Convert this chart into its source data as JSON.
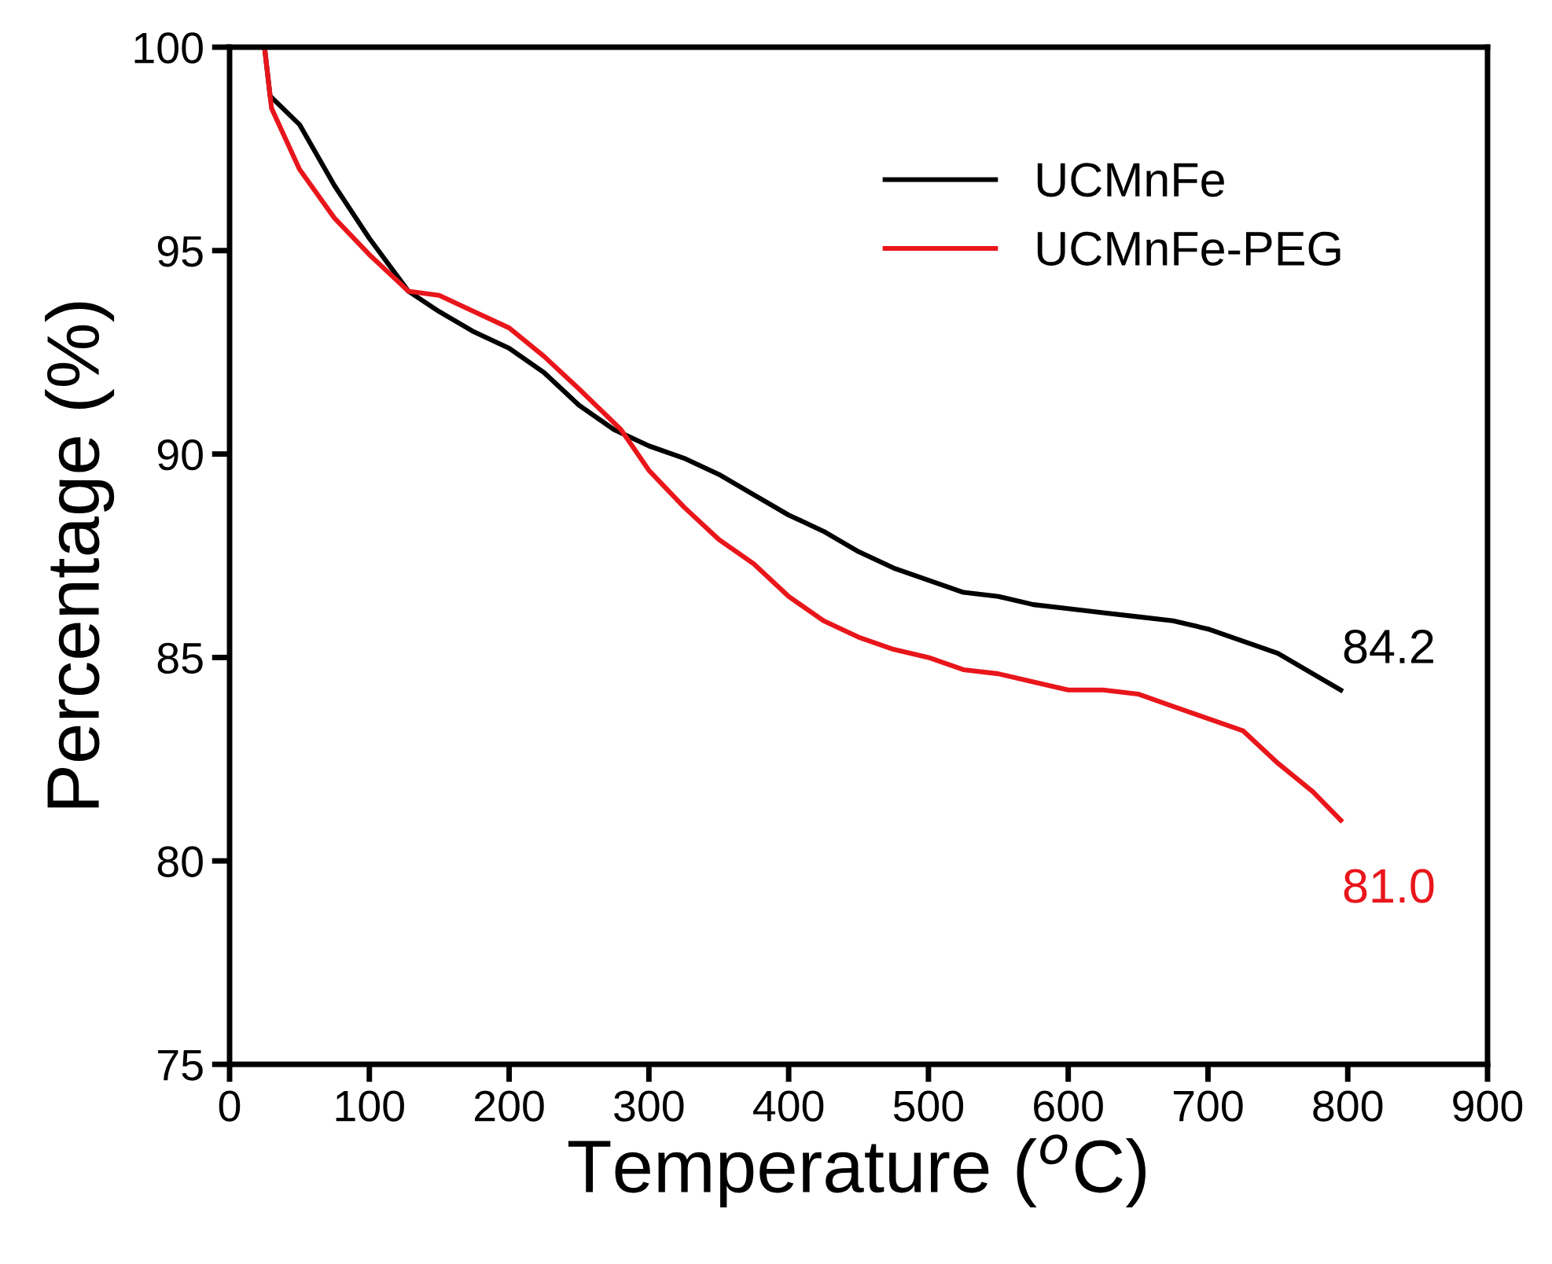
{
  "chart_data": {
    "type": "line",
    "xlabel": "Temperature ($^{o}$C)",
    "ylabel": "Percentage (%)",
    "xlim": [
      0,
      900
    ],
    "xticks": [
      0,
      100,
      200,
      300,
      400,
      500,
      600,
      700,
      800,
      900
    ],
    "ylim": [
      75,
      100
    ],
    "yticks": [
      75,
      80,
      85,
      90,
      95,
      100
    ],
    "grid": false,
    "legend": "top right",
    "line_style": "solid",
    "marker": "none",
    "series": [
      {
        "name": "UCMnFe",
        "color": "#000000",
        "x": [
          25,
          29,
          50,
          75,
          100,
          128,
          150,
          175,
          200,
          225,
          250,
          275,
          300,
          325,
          350,
          375,
          400,
          425,
          450,
          475,
          500,
          525,
          550,
          575,
          600,
          625,
          650,
          675,
          700,
          725,
          750,
          775,
          795
        ],
        "values": [
          100,
          98.8,
          98.1,
          96.6,
          95.3,
          94.0,
          93.5,
          93.0,
          92.6,
          92.0,
          91.2,
          90.6,
          90.2,
          89.9,
          89.5,
          89.0,
          88.5,
          88.1,
          87.6,
          87.2,
          86.9,
          86.6,
          86.5,
          86.3,
          86.2,
          86.1,
          86.0,
          85.9,
          85.7,
          85.4,
          85.1,
          84.6,
          84.2
        ]
      },
      {
        "name": "UCMnFe-PEG",
        "color": "#e8161b",
        "x": [
          25,
          30,
          50,
          75,
          100,
          128,
          150,
          175,
          200,
          225,
          250,
          280,
          300,
          325,
          350,
          375,
          400,
          425,
          450,
          475,
          500,
          525,
          550,
          575,
          600,
          625,
          650,
          675,
          700,
          725,
          750,
          775,
          795
        ],
        "values": [
          100,
          98.5,
          97.0,
          95.8,
          94.9,
          94.0,
          93.9,
          93.5,
          93.1,
          92.4,
          91.6,
          90.6,
          89.6,
          88.7,
          87.9,
          87.3,
          86.5,
          85.9,
          85.5,
          85.2,
          85.0,
          84.7,
          84.6,
          84.4,
          84.2,
          84.2,
          84.1,
          83.8,
          83.5,
          83.2,
          82.4,
          81.7,
          81.0
        ]
      }
    ],
    "annotations": [
      {
        "text": "84.2",
        "x": 795,
        "y": 84.2
      },
      {
        "text": "81.0",
        "x": 795,
        "y": 81.0
      }
    ]
  }
}
